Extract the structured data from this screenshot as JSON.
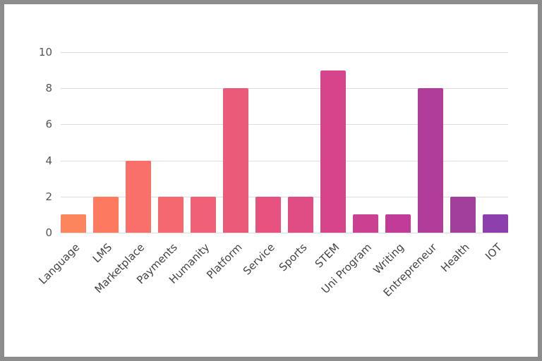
{
  "chart_data": {
    "type": "bar",
    "title": "",
    "xlabel": "",
    "ylabel": "",
    "ylim": [
      0,
      10
    ],
    "yticks": [
      0,
      2,
      4,
      6,
      8,
      10
    ],
    "grid": true,
    "categories": [
      "Language",
      "LMS",
      "Marketplace",
      "Payments",
      "Humanity",
      "Platform",
      "Service",
      "Sports",
      "STEM",
      "Uni Program",
      "Writing",
      "Entrepreneur",
      "Health",
      "IOT"
    ],
    "values": [
      1,
      2,
      4,
      2,
      2,
      8,
      2,
      2,
      9,
      1,
      1,
      8,
      2,
      1
    ],
    "colors": [
      "#fd855e",
      "#fc7a5f",
      "#f96f69",
      "#f5686f",
      "#f16175",
      "#ec5a79",
      "#e8527f",
      "#e04d85",
      "#d6458c",
      "#cb4090",
      "#c13c96",
      "#b13d9b",
      "#a23f9d",
      "#8e3fae"
    ]
  }
}
